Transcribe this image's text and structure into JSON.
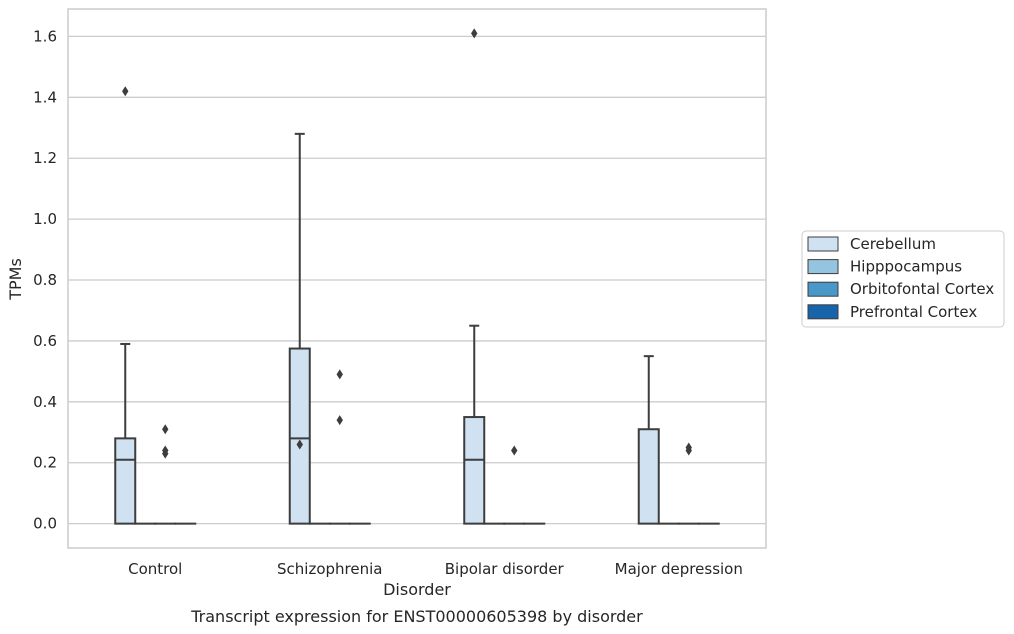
{
  "chart_data": {
    "type": "box",
    "caption": "Transcript expression for ENST00000605398 by disorder",
    "xlabel": "Disorder",
    "ylabel": "TPMs",
    "ylim": [
      -0.08,
      1.69
    ],
    "yticks": [
      0.0,
      0.2,
      0.4,
      0.6,
      0.8,
      1.0,
      1.2,
      1.4,
      1.6
    ],
    "ytick_labels": [
      "0.0",
      "0.2",
      "0.4",
      "0.6",
      "0.8",
      "1.0",
      "1.2",
      "1.4",
      "1.6"
    ],
    "grid": "horizontal",
    "legend_placement": "right",
    "categories": [
      "Control",
      "Schizophrenia",
      "Bipolar disorder",
      "Major depression"
    ],
    "series": [
      {
        "name": "Cerebellum",
        "color": "#d0e1f2",
        "boxes": [
          {
            "whisker_low": 0.0,
            "q1": 0.0,
            "median": 0.21,
            "q3": 0.28,
            "whisker_high": 0.59,
            "outliers": [
              1.42
            ]
          },
          {
            "whisker_low": 0.0,
            "q1": 0.0,
            "median": 0.28,
            "q3": 0.575,
            "whisker_high": 1.28,
            "outliers": [
              0.26
            ]
          },
          {
            "whisker_low": 0.0,
            "q1": 0.0,
            "median": 0.21,
            "q3": 0.35,
            "whisker_high": 0.65,
            "outliers": [
              1.61
            ]
          },
          {
            "whisker_low": 0.0,
            "q1": 0.0,
            "median": 0.0,
            "q3": 0.31,
            "whisker_high": 0.55,
            "outliers": []
          }
        ]
      },
      {
        "name": "Hipppocampus",
        "color": "#94c4df",
        "boxes": [
          {
            "whisker_low": 0.0,
            "q1": 0.0,
            "median": 0.0,
            "q3": 0.0,
            "whisker_high": 0.0,
            "outliers": []
          },
          {
            "whisker_low": 0.0,
            "q1": 0.0,
            "median": 0.0,
            "q3": 0.0,
            "whisker_high": 0.0,
            "outliers": []
          },
          {
            "whisker_low": 0.0,
            "q1": 0.0,
            "median": 0.0,
            "q3": 0.0,
            "whisker_high": 0.0,
            "outliers": []
          },
          {
            "whisker_low": 0.0,
            "q1": 0.0,
            "median": 0.0,
            "q3": 0.0,
            "whisker_high": 0.0,
            "outliers": []
          }
        ]
      },
      {
        "name": "Orbitofontal Cortex",
        "color": "#4a98c9",
        "boxes": [
          {
            "whisker_low": 0.0,
            "q1": 0.0,
            "median": 0.0,
            "q3": 0.0,
            "whisker_high": 0.0,
            "outliers": [
              0.31,
              0.24,
              0.23
            ]
          },
          {
            "whisker_low": 0.0,
            "q1": 0.0,
            "median": 0.0,
            "q3": 0.0,
            "whisker_high": 0.0,
            "outliers": [
              0.49,
              0.34
            ]
          },
          {
            "whisker_low": 0.0,
            "q1": 0.0,
            "median": 0.0,
            "q3": 0.0,
            "whisker_high": 0.0,
            "outliers": [
              0.24
            ]
          },
          {
            "whisker_low": 0.0,
            "q1": 0.0,
            "median": 0.0,
            "q3": 0.0,
            "whisker_high": 0.0,
            "outliers": [
              0.25,
              0.24
            ]
          }
        ]
      },
      {
        "name": "Prefrontal Cortex",
        "color": "#1764ab",
        "boxes": [
          {
            "whisker_low": 0.0,
            "q1": 0.0,
            "median": 0.0,
            "q3": 0.0,
            "whisker_high": 0.0,
            "outliers": []
          },
          {
            "whisker_low": 0.0,
            "q1": 0.0,
            "median": 0.0,
            "q3": 0.0,
            "whisker_high": 0.0,
            "outliers": []
          },
          {
            "whisker_low": 0.0,
            "q1": 0.0,
            "median": 0.0,
            "q3": 0.0,
            "whisker_high": 0.0,
            "outliers": []
          },
          {
            "whisker_low": 0.0,
            "q1": 0.0,
            "median": 0.0,
            "q3": 0.0,
            "whisker_high": 0.0,
            "outliers": []
          }
        ]
      }
    ]
  }
}
